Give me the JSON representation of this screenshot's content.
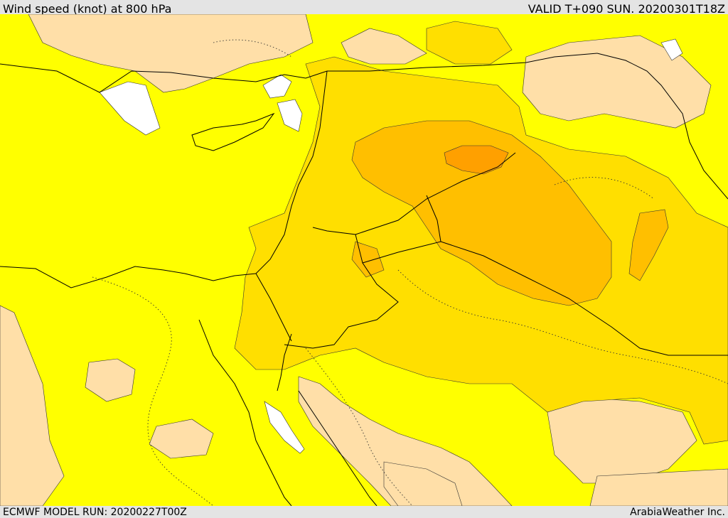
{
  "header": {
    "title": "Wind speed (knot) at 800 hPa",
    "valid_time": "VALID T+090 SUN. 20200301T18Z"
  },
  "footer": {
    "model_run": "ECMWF MODEL RUN: 20200227T00Z",
    "credit": "ArabiaWeather Inc."
  },
  "map": {
    "field": "wind speed",
    "level_hpa": 800,
    "units": "knot",
    "fill_colors": {
      "lowest": "#ffdfa8",
      "low": "#ffff00",
      "moderate": "#ffdf00",
      "high": "#ffbf00",
      "highest": "#ffa000"
    },
    "no_data_color": "#ffffff"
  }
}
